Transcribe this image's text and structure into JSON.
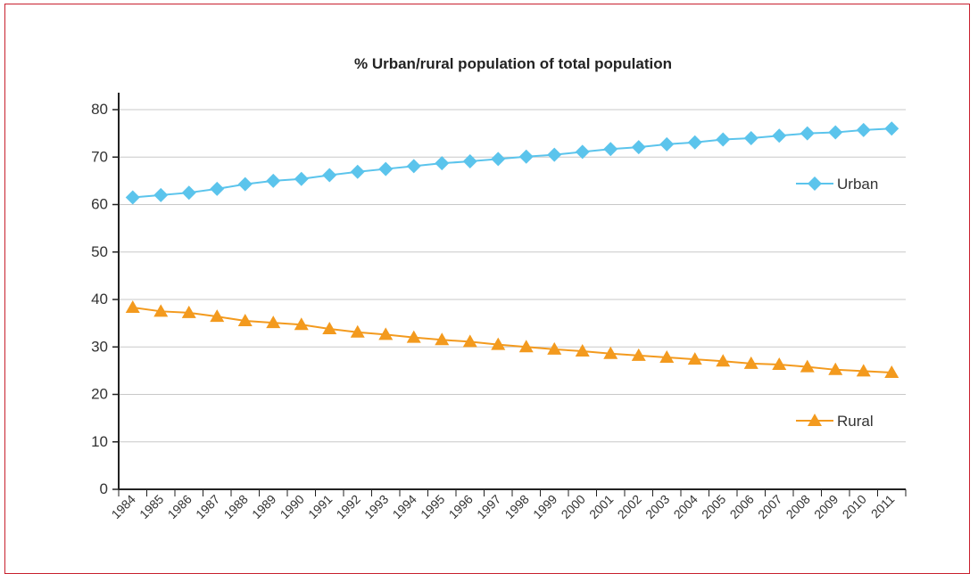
{
  "chart_data": {
    "type": "line",
    "title": "% Urban/rural population of total population",
    "xlabel": "",
    "ylabel": "",
    "ylim": [
      0,
      80
    ],
    "yticks": [
      0,
      10,
      20,
      30,
      40,
      50,
      60,
      70,
      80
    ],
    "categories": [
      "1984",
      "1985",
      "1986",
      "1987",
      "1988",
      "1989",
      "1990",
      "1991",
      "1992",
      "1993",
      "1994",
      "1995",
      "1996",
      "1997",
      "1998",
      "1999",
      "2000",
      "2001",
      "2002",
      "2003",
      "2004",
      "2005",
      "2006",
      "2007",
      "2008",
      "2009",
      "2010",
      "2011"
    ],
    "grid": true,
    "legend": "right",
    "series": [
      {
        "name": "Urban",
        "color": "#5bc4ec",
        "marker": "diamond",
        "values": [
          61.5,
          62.0,
          62.5,
          63.3,
          64.3,
          65.0,
          65.4,
          66.2,
          66.9,
          67.5,
          68.1,
          68.7,
          69.1,
          69.6,
          70.1,
          70.5,
          71.1,
          71.7,
          72.1,
          72.7,
          73.1,
          73.7,
          74.0,
          74.5,
          75.0,
          75.2,
          75.7,
          76.0
        ]
      },
      {
        "name": "Rural",
        "color": "#f39a1e",
        "marker": "triangle",
        "values": [
          38.3,
          37.5,
          37.2,
          36.4,
          35.5,
          35.1,
          34.7,
          33.8,
          33.1,
          32.6,
          32.0,
          31.5,
          31.1,
          30.5,
          30.0,
          29.5,
          29.1,
          28.6,
          28.2,
          27.8,
          27.4,
          27.0,
          26.5,
          26.3,
          25.8,
          25.2,
          24.9,
          24.6
        ]
      }
    ]
  }
}
